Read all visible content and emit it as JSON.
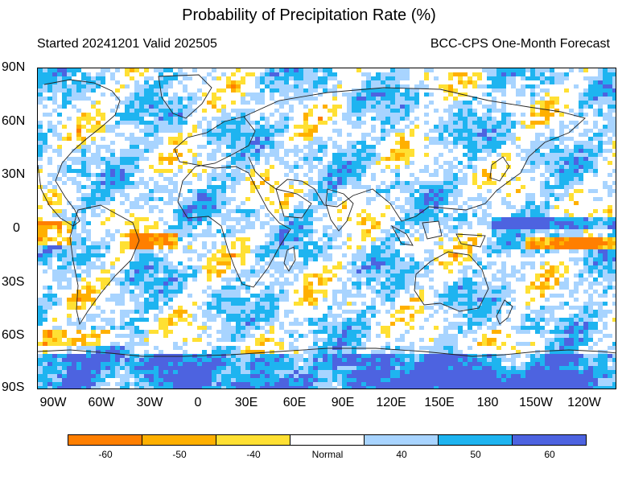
{
  "title": "Probability of Precipitation Rate (%)",
  "subtitle_left": "Started 20241201  Valid 202505",
  "subtitle_right": "BCC-CPS One-Month Forecast",
  "lat_labels": [
    "90N",
    "60N",
    "30N",
    "0",
    "30S",
    "60S",
    "90S"
  ],
  "lon_labels": [
    "90W",
    "60W",
    "30W",
    "0",
    "30E",
    "60E",
    "90E",
    "120E",
    "150E",
    "180",
    "150W",
    "120W"
  ],
  "legend": {
    "bins": [
      {
        "label": "-60",
        "color": "#ff7f00"
      },
      {
        "label": "-50",
        "color": "#ffb000"
      },
      {
        "label": "-40",
        "color": "#ffe033"
      },
      {
        "label": "Normal",
        "color": "#ffffff"
      },
      {
        "label": "40",
        "color": "#a8d4ff"
      },
      {
        "label": "50",
        "color": "#1eb4f0"
      },
      {
        "label": "60",
        "color": "#4d63e0"
      }
    ]
  }
}
